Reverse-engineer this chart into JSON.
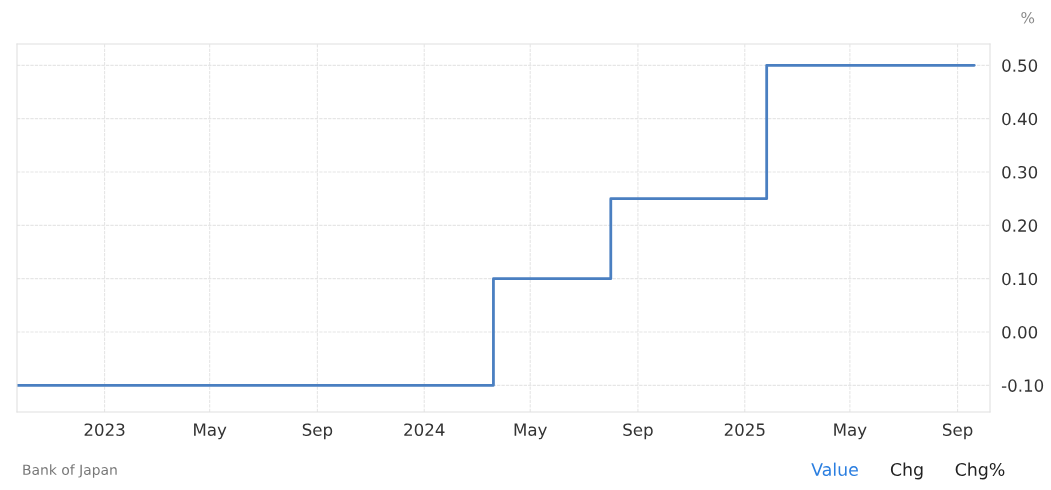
{
  "chart_data": {
    "type": "step",
    "ylabel": "%",
    "x": [
      "2022-09-23",
      "2024-03-20",
      "2024-08-01",
      "2025-01-26",
      "2025-09-20"
    ],
    "series": [
      {
        "color": "#4a7fc1",
        "values": [
          -0.1,
          0.1,
          0.25,
          0.5,
          0.5
        ]
      }
    ],
    "xlim": [
      "2022-09-23",
      "2025-10-08"
    ],
    "xticks": [
      {
        "value": "2023-01-01",
        "label": "2023"
      },
      {
        "value": "2023-05-01",
        "label": "May"
      },
      {
        "value": "2023-09-01",
        "label": "Sep"
      },
      {
        "value": "2024-01-01",
        "label": "2024"
      },
      {
        "value": "2024-05-01",
        "label": "May"
      },
      {
        "value": "2024-09-01",
        "label": "Sep"
      },
      {
        "value": "2025-01-01",
        "label": "2025"
      },
      {
        "value": "2025-05-01",
        "label": "May"
      },
      {
        "value": "2025-09-01",
        "label": "Sep"
      }
    ],
    "ylim": [
      -0.15,
      0.54
    ],
    "yticks": [
      {
        "value": -0.1,
        "label": "-0.10"
      },
      {
        "value": 0,
        "label": "0.00"
      },
      {
        "value": 0.1,
        "label": "0.10"
      },
      {
        "value": 0.2,
        "label": "0.20"
      },
      {
        "value": 0.3,
        "label": "0.30"
      },
      {
        "value": 0.4,
        "label": "0.40"
      },
      {
        "value": 0.5,
        "label": "0.50"
      }
    ],
    "grid": true,
    "annotations": [
      "Bank of Japan",
      "Value",
      "Chg",
      "Chg%"
    ]
  }
}
